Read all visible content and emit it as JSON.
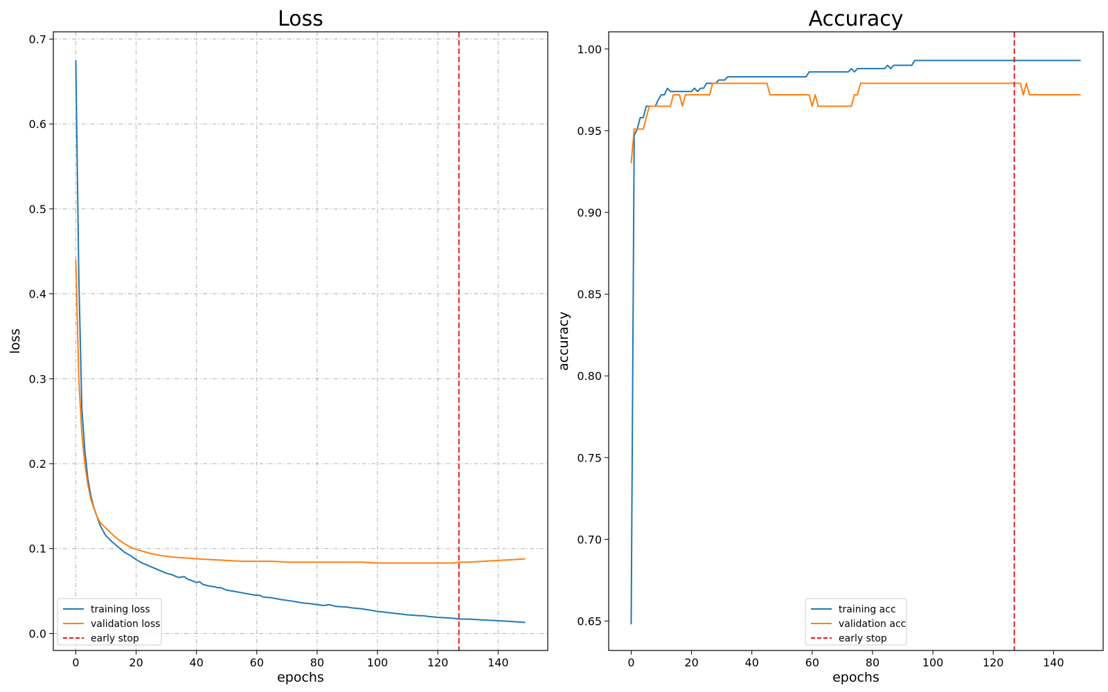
{
  "chart_data": [
    {
      "type": "line",
      "title": "Loss",
      "xlabel": "epochs",
      "ylabel": "loss",
      "xlim": [
        -7.45,
        156.45
      ],
      "ylim": [
        -0.02,
        0.7085
      ],
      "xticks": [
        0,
        20,
        40,
        60,
        80,
        100,
        120,
        140
      ],
      "yticks": [
        0.0,
        0.1,
        0.2,
        0.3,
        0.4,
        0.5,
        0.6,
        0.7
      ],
      "ytick_decimals": 1,
      "grid": true,
      "legend_position": "lower-left",
      "early_stop": 127,
      "early_stop_label": "early stop",
      "series": [
        {
          "name": "training loss",
          "color": "#1f77b4",
          "points": [
            [
              0,
              0.675
            ],
            [
              1,
              0.42
            ],
            [
              2,
              0.265
            ],
            [
              3,
              0.215
            ],
            [
              4,
              0.182
            ],
            [
              5,
              0.162
            ],
            [
              6,
              0.148
            ],
            [
              7,
              0.138
            ],
            [
              8,
              0.128
            ],
            [
              9,
              0.121
            ],
            [
              10,
              0.115
            ],
            [
              12,
              0.108
            ],
            [
              14,
              0.102
            ],
            [
              16,
              0.096
            ],
            [
              18,
              0.092
            ],
            [
              20,
              0.087
            ],
            [
              22,
              0.083
            ],
            [
              24,
              0.08
            ],
            [
              26,
              0.077
            ],
            [
              28,
              0.074
            ],
            [
              30,
              0.071
            ],
            [
              32,
              0.069
            ],
            [
              34,
              0.066
            ],
            [
              36,
              0.067
            ],
            [
              37,
              0.064
            ],
            [
              38,
              0.063
            ],
            [
              40,
              0.06
            ],
            [
              41,
              0.061
            ],
            [
              42,
              0.058
            ],
            [
              44,
              0.056
            ],
            [
              46,
              0.055
            ],
            [
              47,
              0.054
            ],
            [
              48,
              0.054
            ],
            [
              50,
              0.051
            ],
            [
              52,
              0.05
            ],
            [
              55,
              0.048
            ],
            [
              58,
              0.046
            ],
            [
              60,
              0.045
            ],
            [
              61,
              0.045
            ],
            [
              62,
              0.043
            ],
            [
              65,
              0.042
            ],
            [
              68,
              0.04
            ],
            [
              72,
              0.038
            ],
            [
              75,
              0.036
            ],
            [
              78,
              0.035
            ],
            [
              80,
              0.034
            ],
            [
              82,
              0.033
            ],
            [
              84,
              0.034
            ],
            [
              86,
              0.032
            ],
            [
              90,
              0.031
            ],
            [
              92,
              0.03
            ],
            [
              95,
              0.029
            ],
            [
              100,
              0.026
            ],
            [
              105,
              0.024
            ],
            [
              110,
              0.022
            ],
            [
              114,
              0.021
            ],
            [
              115,
              0.021
            ],
            [
              117,
              0.02
            ],
            [
              120,
              0.019
            ],
            [
              125,
              0.018
            ],
            [
              127,
              0.017
            ],
            [
              130,
              0.017
            ],
            [
              135,
              0.016
            ],
            [
              140,
              0.015
            ],
            [
              145,
              0.014
            ],
            [
              149,
              0.013
            ]
          ]
        },
        {
          "name": "validation loss",
          "color": "#ff7f0e",
          "points": [
            [
              0,
              0.44
            ],
            [
              1,
              0.3
            ],
            [
              2,
              0.235
            ],
            [
              3,
              0.2
            ],
            [
              4,
              0.175
            ],
            [
              5,
              0.158
            ],
            [
              6,
              0.147
            ],
            [
              7,
              0.138
            ],
            [
              8,
              0.131
            ],
            [
              10,
              0.124
            ],
            [
              12,
              0.117
            ],
            [
              14,
              0.111
            ],
            [
              16,
              0.106
            ],
            [
              18,
              0.102
            ],
            [
              20,
              0.099
            ],
            [
              22,
              0.097
            ],
            [
              25,
              0.094
            ],
            [
              28,
              0.092
            ],
            [
              32,
              0.09
            ],
            [
              36,
              0.089
            ],
            [
              40,
              0.088
            ],
            [
              45,
              0.087
            ],
            [
              50,
              0.086
            ],
            [
              55,
              0.085
            ],
            [
              60,
              0.085
            ],
            [
              65,
              0.085
            ],
            [
              70,
              0.084
            ],
            [
              75,
              0.084
            ],
            [
              80,
              0.084
            ],
            [
              85,
              0.084
            ],
            [
              90,
              0.084
            ],
            [
              95,
              0.084
            ],
            [
              100,
              0.083
            ],
            [
              105,
              0.083
            ],
            [
              110,
              0.083
            ],
            [
              115,
              0.083
            ],
            [
              118,
              0.083
            ],
            [
              120,
              0.083
            ],
            [
              125,
              0.083
            ],
            [
              127,
              0.084
            ],
            [
              130,
              0.084
            ],
            [
              135,
              0.085
            ],
            [
              140,
              0.086
            ],
            [
              145,
              0.087
            ],
            [
              149,
              0.088
            ]
          ]
        }
      ]
    },
    {
      "type": "line",
      "title": "Accuracy",
      "xlabel": "epochs",
      "ylabel": "accuracy",
      "xlim": [
        -7.45,
        156.45
      ],
      "ylim": [
        0.632,
        1.0105
      ],
      "xticks": [
        0,
        20,
        40,
        60,
        80,
        100,
        120,
        140
      ],
      "yticks": [
        0.65,
        0.7,
        0.75,
        0.8,
        0.85,
        0.9,
        0.95,
        1.0
      ],
      "ytick_decimals": 2,
      "grid": false,
      "legend_position": "lower-center",
      "early_stop": 127,
      "early_stop_label": "early stop",
      "series": [
        {
          "name": "training acc",
          "color": "#1f77b4",
          "points": [
            [
              0,
              0.648
            ],
            [
              1,
              0.947
            ],
            [
              2,
              0.951
            ],
            [
              3,
              0.958
            ],
            [
              4,
              0.958
            ],
            [
              5,
              0.965
            ],
            [
              6,
              0.965
            ],
            [
              7,
              0.965
            ],
            [
              8,
              0.965
            ],
            [
              9,
              0.969
            ],
            [
              10,
              0.972
            ],
            [
              11,
              0.972
            ],
            [
              12,
              0.976
            ],
            [
              13,
              0.974
            ],
            [
              14,
              0.974
            ],
            [
              15,
              0.974
            ],
            [
              20,
              0.974
            ],
            [
              21,
              0.976
            ],
            [
              22,
              0.974
            ],
            [
              23,
              0.976
            ],
            [
              24,
              0.976
            ],
            [
              25,
              0.979
            ],
            [
              26,
              0.979
            ],
            [
              27,
              0.979
            ],
            [
              28,
              0.979
            ],
            [
              29,
              0.981
            ],
            [
              30,
              0.981
            ],
            [
              31,
              0.981
            ],
            [
              32,
              0.983
            ],
            [
              35,
              0.983
            ],
            [
              40,
              0.983
            ],
            [
              45,
              0.983
            ],
            [
              50,
              0.983
            ],
            [
              55,
              0.983
            ],
            [
              58,
              0.983
            ],
            [
              59,
              0.986
            ],
            [
              60,
              0.986
            ],
            [
              65,
              0.986
            ],
            [
              70,
              0.986
            ],
            [
              72,
              0.986
            ],
            [
              73,
              0.988
            ],
            [
              74,
              0.986
            ],
            [
              75,
              0.988
            ],
            [
              80,
              0.988
            ],
            [
              84,
              0.988
            ],
            [
              85,
              0.99
            ],
            [
              86,
              0.988
            ],
            [
              87,
              0.99
            ],
            [
              90,
              0.99
            ],
            [
              93,
              0.99
            ],
            [
              94,
              0.993
            ],
            [
              100,
              0.993
            ],
            [
              110,
              0.993
            ],
            [
              120,
              0.993
            ],
            [
              130,
              0.993
            ],
            [
              140,
              0.993
            ],
            [
              149,
              0.993
            ]
          ]
        },
        {
          "name": "validation acc",
          "color": "#ff7f0e",
          "points": [
            [
              0,
              0.93
            ],
            [
              1,
              0.951
            ],
            [
              2,
              0.951
            ],
            [
              3,
              0.951
            ],
            [
              4,
              0.951
            ],
            [
              5,
              0.958
            ],
            [
              6,
              0.965
            ],
            [
              7,
              0.965
            ],
            [
              10,
              0.965
            ],
            [
              12,
              0.965
            ],
            [
              13,
              0.965
            ],
            [
              14,
              0.972
            ],
            [
              15,
              0.972
            ],
            [
              16,
              0.972
            ],
            [
              17,
              0.965
            ],
            [
              18,
              0.972
            ],
            [
              19,
              0.972
            ],
            [
              20,
              0.972
            ],
            [
              25,
              0.972
            ],
            [
              26,
              0.972
            ],
            [
              27,
              0.979
            ],
            [
              28,
              0.979
            ],
            [
              35,
              0.979
            ],
            [
              40,
              0.979
            ],
            [
              44,
              0.979
            ],
            [
              45,
              0.979
            ],
            [
              46,
              0.972
            ],
            [
              50,
              0.972
            ],
            [
              55,
              0.972
            ],
            [
              58,
              0.972
            ],
            [
              59,
              0.972
            ],
            [
              60,
              0.965
            ],
            [
              61,
              0.972
            ],
            [
              62,
              0.965
            ],
            [
              65,
              0.965
            ],
            [
              70,
              0.965
            ],
            [
              72,
              0.965
            ],
            [
              73,
              0.965
            ],
            [
              74,
              0.972
            ],
            [
              75,
              0.972
            ],
            [
              76,
              0.979
            ],
            [
              80,
              0.979
            ],
            [
              90,
              0.979
            ],
            [
              100,
              0.979
            ],
            [
              110,
              0.979
            ],
            [
              120,
              0.979
            ],
            [
              128,
              0.979
            ],
            [
              129,
              0.979
            ],
            [
              130,
              0.972
            ],
            [
              131,
              0.979
            ],
            [
              132,
              0.972
            ],
            [
              135,
              0.972
            ],
            [
              140,
              0.972
            ],
            [
              145,
              0.972
            ],
            [
              149,
              0.972
            ]
          ]
        }
      ]
    }
  ]
}
